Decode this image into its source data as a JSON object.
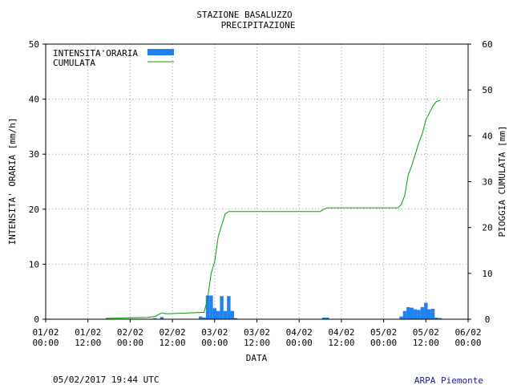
{
  "header": {
    "title": "STAZIONE BASALUZZO",
    "subtitle": "PRECIPITAZIONE"
  },
  "footer": {
    "timestamp": "05/02/2017 19:44 UTC",
    "credit": "ARPA Piemonte"
  },
  "colors": {
    "bars": "#1e82f0",
    "line": "#0a9a0a",
    "grid": "#9a9a9a",
    "text": "#000000",
    "credit": "#1a1a8c"
  },
  "chart_data": {
    "type": "bar",
    "title": "STAZIONE BASALUZZO",
    "subtitle": "PRECIPITAZIONE",
    "xlabel": "DATA",
    "ylabel_left": "INTENSITA' ORARIA [mm/h]",
    "ylabel_right": "PIOGGIA CUMULATA [mm]",
    "xlim_hours": [
      0,
      120
    ],
    "ylim_left": [
      0,
      50
    ],
    "ylim_right": [
      0,
      60
    ],
    "yticks_left": [
      0,
      10,
      20,
      30,
      40,
      50
    ],
    "yticks_right": [
      0,
      10,
      20,
      30,
      40,
      50,
      60
    ],
    "xticks": [
      {
        "hour": 0,
        "line1": "01/02",
        "line2": "00:00"
      },
      {
        "hour": 12,
        "line1": "01/02",
        "line2": "12:00"
      },
      {
        "hour": 24,
        "line1": "02/02",
        "line2": "00:00"
      },
      {
        "hour": 36,
        "line1": "02/02",
        "line2": "12:00"
      },
      {
        "hour": 48,
        "line1": "03/02",
        "line2": "00:00"
      },
      {
        "hour": 60,
        "line1": "03/02",
        "line2": "12:00"
      },
      {
        "hour": 72,
        "line1": "04/02",
        "line2": "00:00"
      },
      {
        "hour": 84,
        "line1": "04/02",
        "line2": "12:00"
      },
      {
        "hour": 96,
        "line1": "05/02",
        "line2": "00:00"
      },
      {
        "hour": 108,
        "line1": "05/02",
        "line2": "12:00"
      },
      {
        "hour": 120,
        "line1": "06/02",
        "line2": "00:00"
      }
    ],
    "grid": true,
    "legend_position": "top-left",
    "series": [
      {
        "name": "INTENSITA'ORARIA",
        "kind": "bar",
        "axis": "left",
        "hours": [
          31,
          33,
          44,
          45,
          46,
          47,
          48,
          49,
          50,
          51,
          52,
          53,
          54,
          79,
          80,
          101,
          102,
          103,
          104,
          105,
          106,
          107,
          108,
          109,
          110,
          111,
          112
        ],
        "values": [
          0.2,
          0.4,
          0.5,
          0.3,
          4.3,
          4.3,
          2.0,
          1.5,
          4.2,
          1.5,
          4.2,
          1.5,
          0.2,
          0.3,
          0.3,
          0.5,
          1.5,
          2.2,
          2.1,
          1.8,
          1.7,
          2.2,
          3.0,
          1.8,
          1.9,
          0.3,
          0.2
        ]
      },
      {
        "name": "CUMULATA",
        "kind": "line",
        "axis": "right",
        "hours": [
          17,
          29,
          31,
          32,
          33,
          34,
          35,
          45,
          46,
          47,
          48,
          49,
          50,
          51,
          52,
          53,
          54,
          78,
          79,
          80,
          100,
          101,
          102,
          103,
          104,
          105,
          106,
          107,
          108,
          109,
          110,
          111,
          112
        ],
        "values": [
          0.2,
          0.4,
          0.6,
          1.0,
          1.4,
          1.2,
          1.2,
          1.5,
          4.5,
          10.0,
          12.5,
          18.0,
          20.5,
          23.0,
          23.5,
          23.5,
          23.5,
          23.5,
          24.0,
          24.3,
          24.3,
          25.0,
          27.0,
          31.5,
          33.5,
          36.0,
          38.5,
          40.5,
          43.5,
          45.0,
          46.5,
          47.5,
          47.7
        ]
      }
    ]
  }
}
